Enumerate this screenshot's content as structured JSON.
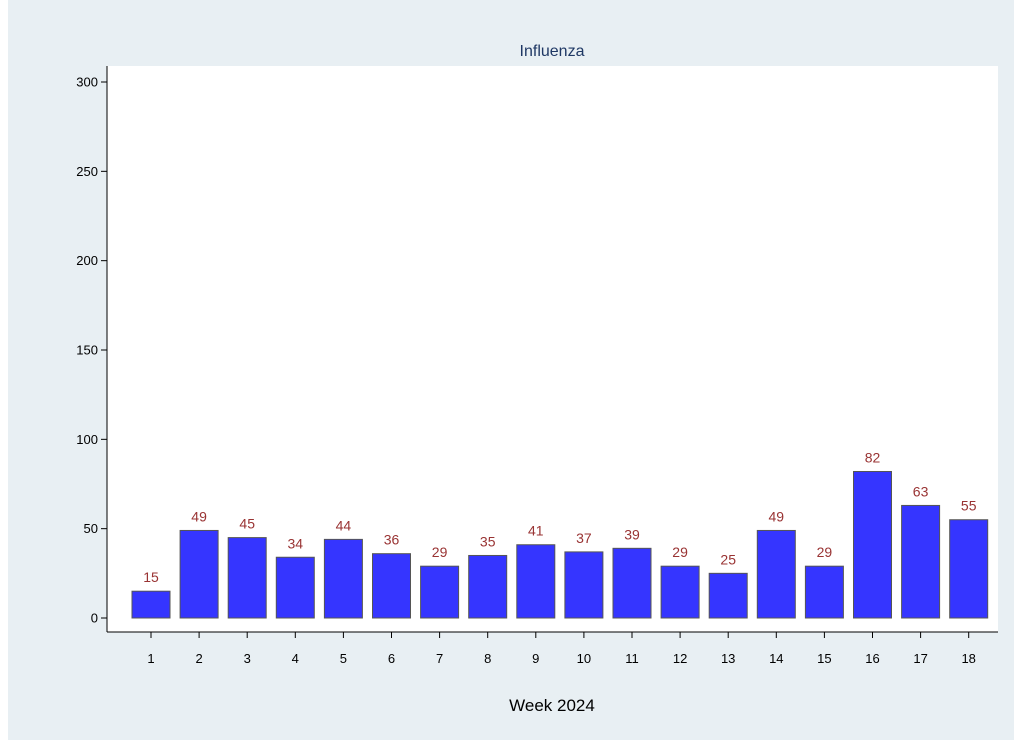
{
  "page_title": "",
  "chart_data": {
    "type": "bar",
    "title": "Influenza",
    "xlabel": "Week 2024",
    "ylabel": "",
    "categories": [
      "1",
      "2",
      "3",
      "4",
      "5",
      "6",
      "7",
      "8",
      "9",
      "10",
      "11",
      "12",
      "13",
      "14",
      "15",
      "16",
      "17",
      "18"
    ],
    "values": [
      15,
      49,
      45,
      34,
      44,
      36,
      29,
      35,
      41,
      37,
      39,
      29,
      25,
      49,
      29,
      82,
      63,
      55
    ],
    "ylim": [
      0,
      300
    ],
    "yticks": [
      0,
      50,
      100,
      150,
      200,
      250,
      300
    ],
    "grid": false,
    "legend": "none",
    "colors": {
      "bar_fill": "#3535ff",
      "bar_edge": "#555555",
      "data_label": "#993333",
      "plot_background": "#ffffff",
      "panel_background": "#e8eff3",
      "title_color": "#1f3864"
    }
  }
}
